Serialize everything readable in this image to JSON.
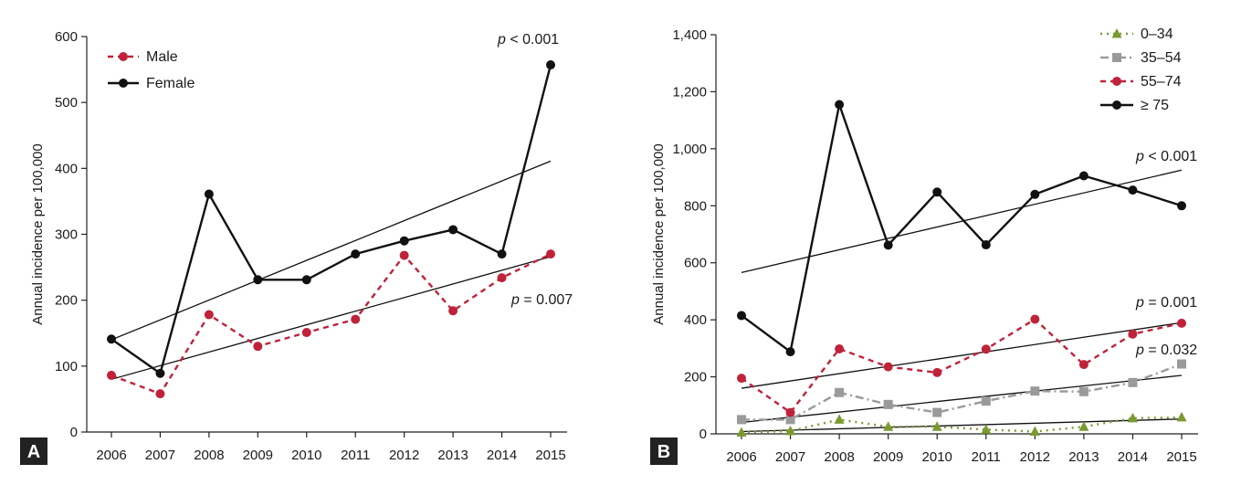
{
  "chart_data": [
    {
      "type": "line",
      "panel_label": "A",
      "ylabel": "Annual incidence per 100,000",
      "x": [
        2006,
        2007,
        2008,
        2009,
        2010,
        2011,
        2012,
        2013,
        2014,
        2015
      ],
      "ylim": [
        0,
        600
      ],
      "yticks": [
        0,
        100,
        200,
        300,
        400,
        500,
        600
      ],
      "ytick_labels": [
        "0",
        "100",
        "200",
        "300",
        "400",
        "500",
        "600"
      ],
      "legend_position": "top-left",
      "grid": false,
      "series": [
        {
          "name": "Male",
          "values": [
            86,
            58,
            178,
            130,
            151,
            171,
            268,
            184,
            234,
            270
          ],
          "color": "#c0223a",
          "style": "dashed",
          "marker": "circle",
          "trend": {
            "start": 80,
            "end": 266
          },
          "p_prefix": "p",
          "p_rest": " = 0.007"
        },
        {
          "name": "Female",
          "values": [
            141,
            89,
            361,
            231,
            231,
            270,
            290,
            307,
            270,
            557
          ],
          "color": "#111111",
          "style": "solid",
          "marker": "circle",
          "trend": {
            "start": 140,
            "end": 411
          },
          "p_prefix": "p",
          "p_rest": " < 0.001"
        }
      ]
    },
    {
      "type": "line",
      "panel_label": "B",
      "ylabel": "Annual incidence per 100,000",
      "x": [
        2006,
        2007,
        2008,
        2009,
        2010,
        2011,
        2012,
        2013,
        2014,
        2015
      ],
      "ylim": [
        0,
        1400
      ],
      "yticks": [
        0,
        200,
        400,
        600,
        800,
        1000,
        1200,
        1400
      ],
      "ytick_labels": [
        "0",
        "200",
        "400",
        "600",
        "800",
        "1,000",
        "1,200",
        "1,400"
      ],
      "legend_position": "top-right",
      "grid": false,
      "series": [
        {
          "name": "0–34",
          "values": [
            5,
            10,
            50,
            25,
            25,
            15,
            8,
            25,
            55,
            58
          ],
          "color": "#7a9a30",
          "style": "dotted",
          "marker": "triangle",
          "trend": {
            "start": 8,
            "end": 52
          }
        },
        {
          "name": "35–54",
          "values": [
            50,
            50,
            145,
            103,
            75,
            115,
            150,
            148,
            180,
            245
          ],
          "color": "#9a9a9a",
          "style": "dashdot",
          "marker": "square",
          "trend": {
            "start": 40,
            "end": 205
          },
          "p_prefix": "p",
          "p_rest": " = 0.032"
        },
        {
          "name": "55–74",
          "values": [
            195,
            75,
            298,
            235,
            215,
            297,
            402,
            243,
            350,
            388
          ],
          "color": "#c0223a",
          "style": "dashed",
          "marker": "circle",
          "trend": {
            "start": 160,
            "end": 390
          },
          "p_prefix": "p",
          "p_rest": " = 0.001"
        },
        {
          "name": "≥ 75",
          "values": [
            415,
            288,
            1155,
            662,
            848,
            663,
            840,
            905,
            855,
            800
          ],
          "color": "#111111",
          "style": "solid",
          "marker": "circle",
          "trend": {
            "start": 566,
            "end": 925
          },
          "p_prefix": "p",
          "p_rest": " < 0.001"
        }
      ]
    }
  ]
}
